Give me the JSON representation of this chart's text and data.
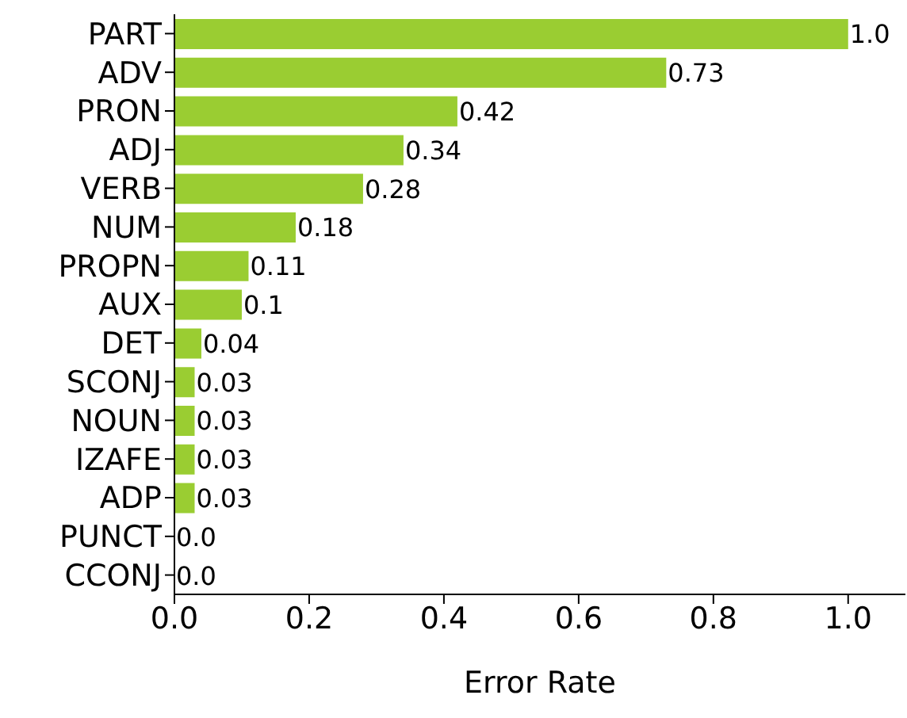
{
  "chart_data": {
    "type": "bar",
    "orientation": "horizontal",
    "xlabel": "Error Rate",
    "categories": [
      "PART",
      "ADV",
      "PRON",
      "ADJ",
      "VERB",
      "NUM",
      "PROPN",
      "AUX",
      "DET",
      "SCONJ",
      "NOUN",
      "IZAFE",
      "ADP",
      "PUNCT",
      "CCONJ"
    ],
    "values": [
      1.0,
      0.73,
      0.42,
      0.34,
      0.28,
      0.18,
      0.11,
      0.1,
      0.04,
      0.03,
      0.03,
      0.03,
      0.03,
      0.0,
      0.0
    ],
    "value_labels": [
      "1.0",
      "0.73",
      "0.42",
      "0.34",
      "0.28",
      "0.18",
      "0.11",
      "0.1",
      "0.04",
      "0.03",
      "0.03",
      "0.03",
      "0.03",
      "0.0",
      "0.0"
    ],
    "color": "#9acd32",
    "xlim": [
      0,
      1.085
    ],
    "xticks": [
      {
        "value": 0,
        "label": "0.0"
      },
      {
        "value": 0.2,
        "label": "0.2"
      },
      {
        "value": 0.4,
        "label": "0.4"
      },
      {
        "value": 0.6,
        "label": "0.6"
      },
      {
        "value": 0.8,
        "label": "0.8"
      },
      {
        "value": 1,
        "label": "1.0"
      }
    ],
    "grid": false,
    "legend": false
  }
}
